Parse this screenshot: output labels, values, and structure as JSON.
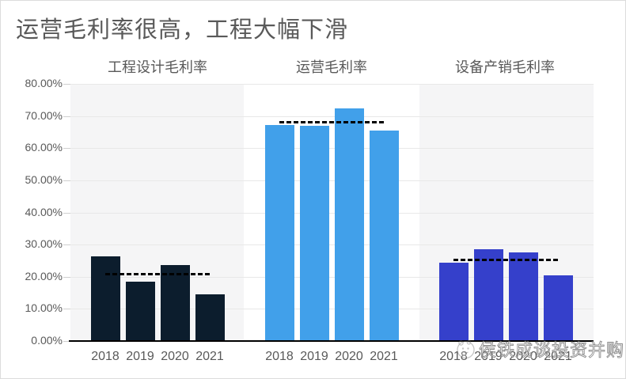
{
  "title": "运营毛利率很高，工程大幅下滑",
  "watermark": {
    "text": "侯铁成谈投资并购",
    "logo": "mascot-circle-logo"
  },
  "colors": {
    "engineering_bar": "#0C1D2D",
    "operations_bar": "#41A0EA",
    "equipment_bar": "#3540CB",
    "panel_shade": "#f5f5f6",
    "panel_white": "#ffffff",
    "gridline": "#e8e8e8",
    "tick": "#cfcfcf",
    "axis_line": "#000000",
    "average_line": "#000000",
    "text": "#595959",
    "card_border": "#dcdcdc"
  },
  "chart_data": {
    "type": "bar",
    "title": "运营毛利率很高，工程大幅下滑",
    "categories": [
      "2018",
      "2019",
      "2020",
      "2021"
    ],
    "ylim": [
      0,
      80
    ],
    "ytick_step": 10,
    "ytick_labels": [
      "0.00%",
      "10.00%",
      "20.00%",
      "30.00%",
      "40.00%",
      "50.00%",
      "60.00%",
      "70.00%",
      "80.00%"
    ],
    "grid": true,
    "legend": "none",
    "average_line_style": "dashed",
    "groups": [
      {
        "label": "工程设计毛利率",
        "color": "#0C1D2D",
        "values": [
          26.4,
          18.5,
          23.7,
          14.6
        ],
        "average": 20.8
      },
      {
        "label": "运营毛利率",
        "color": "#41A0EA",
        "values": [
          67.1,
          66.9,
          72.3,
          65.6
        ],
        "average": 68.0
      },
      {
        "label": "设备产销毛利率",
        "color": "#3540CB",
        "values": [
          24.4,
          28.5,
          27.5,
          20.5
        ],
        "average": 25.2
      }
    ]
  }
}
